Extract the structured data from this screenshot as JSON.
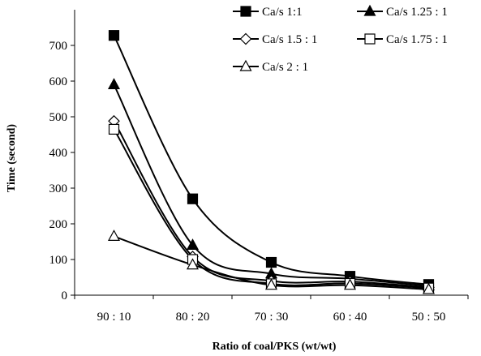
{
  "chart_data": {
    "type": "line",
    "xlabel": "Ratio of coal/PKS (wt/wt)",
    "ylabel": "Time (second)",
    "categories": [
      "90 : 10",
      "80 : 20",
      "70 : 30",
      "60 : 40",
      "50 : 50"
    ],
    "ylim": [
      0,
      800
    ],
    "yticks": [
      0,
      100,
      200,
      300,
      400,
      500,
      600,
      700
    ],
    "grid": false,
    "legend_position": "top-right",
    "series": [
      {
        "name": "Ca/s 1:1",
        "marker": "square-filled",
        "values": [
          728,
          270,
          92,
          53,
          30
        ]
      },
      {
        "name": "Ca/s 1.25 : 1",
        "marker": "triangle-filled",
        "values": [
          590,
          140,
          60,
          46,
          26
        ]
      },
      {
        "name": "Ca/s 1.5 : 1",
        "marker": "diamond-open",
        "values": [
          488,
          108,
          40,
          38,
          22
        ]
      },
      {
        "name": "Ca/s 1.75 : 1",
        "marker": "square-open",
        "values": [
          465,
          100,
          32,
          33,
          20
        ]
      },
      {
        "name": "Ca/s 2 : 1",
        "marker": "triangle-open",
        "values": [
          165,
          85,
          28,
          28,
          16
        ]
      }
    ]
  }
}
